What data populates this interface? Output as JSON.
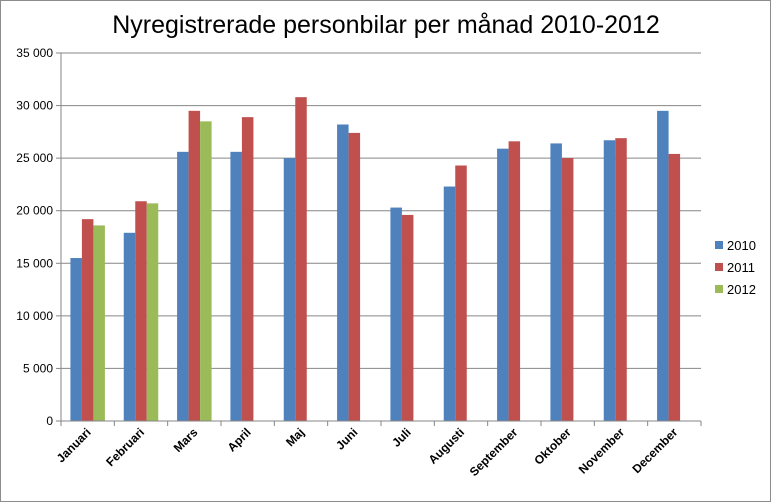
{
  "chart_data": {
    "type": "bar",
    "title": "Nyregistrerade personbilar per månad 2010-2012",
    "xlabel": "",
    "ylabel": "",
    "ylim": [
      0,
      35000
    ],
    "yticks": [
      0,
      5000,
      10000,
      15000,
      20000,
      25000,
      30000,
      35000
    ],
    "ytick_labels": [
      "0",
      "5 000",
      "10 000",
      "15 000",
      "20 000",
      "25 000",
      "30 000",
      "35 000"
    ],
    "grid": true,
    "legend_position": "right",
    "categories": [
      "Januari",
      "Februari",
      "Mars",
      "April",
      "Maj",
      "Juni",
      "Juli",
      "Augusti",
      "September",
      "Oktober",
      "November",
      "December"
    ],
    "series": [
      {
        "name": "2010",
        "color": "#4F81BD",
        "values": [
          15500,
          17900,
          25600,
          25600,
          25000,
          28200,
          20300,
          22300,
          25900,
          26400,
          26700,
          29500
        ]
      },
      {
        "name": "2011",
        "color": "#C0504D",
        "values": [
          19200,
          20900,
          29500,
          28900,
          30800,
          27400,
          19600,
          24300,
          26600,
          25000,
          26900,
          25400
        ]
      },
      {
        "name": "2012",
        "color": "#9BBB59",
        "values": [
          18600,
          20700,
          28500,
          null,
          null,
          null,
          null,
          null,
          null,
          null,
          null,
          null
        ]
      }
    ]
  }
}
